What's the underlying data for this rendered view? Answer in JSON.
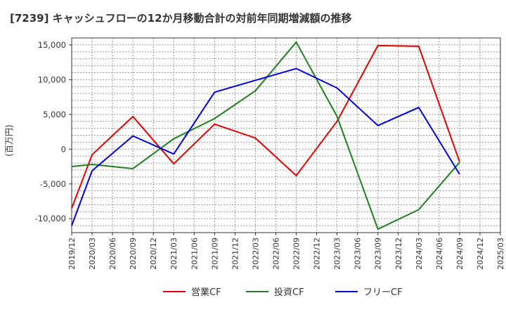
{
  "chart_data": {
    "type": "line",
    "title": "[7239]  キャッシュフローの12か月移動合計の対前年同期増減額の推移",
    "ylabel": "(百万円)",
    "xlabel": "",
    "ylim": [
      -12000,
      16000
    ],
    "yticks": [
      -10000,
      -5000,
      0,
      5000,
      10000,
      15000
    ],
    "ytick_labels": [
      "-10,000",
      "-5,000",
      "0",
      "5,000",
      "10,000",
      "15,000"
    ],
    "categories": [
      "2019/12",
      "2020/03",
      "2020/06",
      "2020/09",
      "2020/12",
      "2021/03",
      "2021/06",
      "2021/09",
      "2021/12",
      "2022/03",
      "2022/06",
      "2022/09",
      "2022/12",
      "2023/03",
      "2023/06",
      "2023/09",
      "2023/12",
      "2024/03",
      "2024/06",
      "2024/09",
      "2024/12",
      "2025/03"
    ],
    "grid": true,
    "legend_position": "bottom",
    "series": [
      {
        "name": "営業CF",
        "color": "#e00000",
        "points": [
          [
            "2019/12",
            -8500
          ],
          [
            "2020/03",
            -800
          ],
          [
            "2020/09",
            4700
          ],
          [
            "2021/03",
            -2100
          ],
          [
            "2021/09",
            3600
          ],
          [
            "2022/03",
            1600
          ],
          [
            "2022/09",
            -3800
          ],
          [
            "2023/03",
            4000
          ],
          [
            "2023/09",
            14900
          ],
          [
            "2024/03",
            14800
          ],
          [
            "2024/09",
            -1800
          ]
        ]
      },
      {
        "name": "投資CF",
        "color": "#208020",
        "points": [
          [
            "2019/12",
            -2500
          ],
          [
            "2020/03",
            -2200
          ],
          [
            "2020/09",
            -2800
          ],
          [
            "2021/03",
            1500
          ],
          [
            "2021/09",
            4400
          ],
          [
            "2022/03",
            8400
          ],
          [
            "2022/09",
            15400
          ],
          [
            "2023/03",
            4700
          ],
          [
            "2023/09",
            -11500
          ],
          [
            "2024/03",
            -8700
          ],
          [
            "2024/09",
            -1900
          ]
        ]
      },
      {
        "name": "フリーCF",
        "color": "#0000dd",
        "points": [
          [
            "2019/12",
            -11000
          ],
          [
            "2020/03",
            -3100
          ],
          [
            "2020/09",
            1900
          ],
          [
            "2021/03",
            -700
          ],
          [
            "2021/09",
            8200
          ],
          [
            "2022/03",
            9900
          ],
          [
            "2022/09",
            11600
          ],
          [
            "2023/03",
            8800
          ],
          [
            "2023/09",
            3400
          ],
          [
            "2024/03",
            6000
          ],
          [
            "2024/09",
            -3600
          ]
        ]
      }
    ]
  }
}
